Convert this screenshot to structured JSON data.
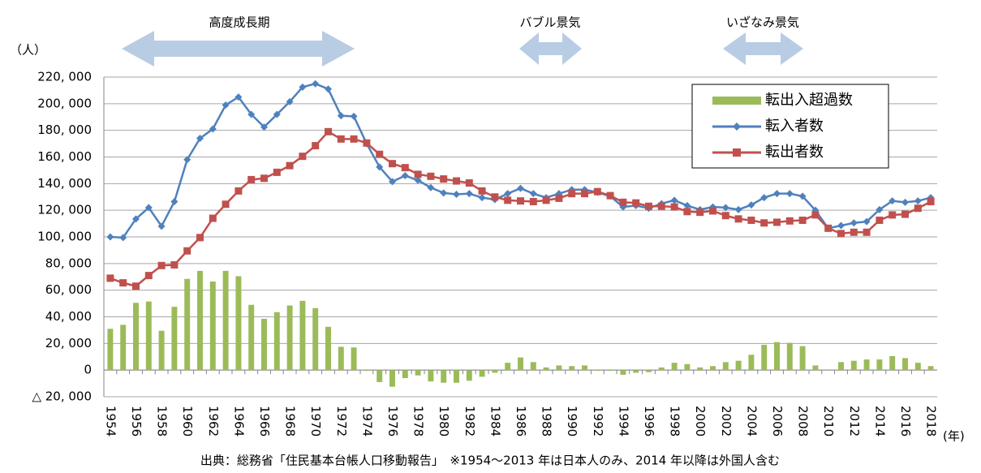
{
  "chart_data": {
    "type": "bar-line",
    "y_label": "（人）",
    "x_label": "(年)",
    "source": "出典：総務省「住民基本台帳人口移動報告」　※1954～2013 年は日本人のみ、2014 年以降は外国人含む",
    "annotations": [
      "高度成長期",
      "バブル景気",
      "いざなみ景気"
    ],
    "categories": [
      "1954",
      null,
      "1956",
      null,
      "1958",
      null,
      "1960",
      null,
      "1962",
      null,
      "1964",
      null,
      "1966",
      null,
      "1968",
      null,
      "1970",
      null,
      "1972",
      null,
      "1974",
      null,
      "1976",
      null,
      "1978",
      null,
      "1980",
      null,
      "1982",
      null,
      "1984",
      null,
      "1986",
      null,
      "1988",
      null,
      "1990",
      null,
      "1992",
      null,
      "1994",
      null,
      "1996",
      null,
      "1998",
      null,
      "2000",
      null,
      "2002",
      null,
      "2004",
      null,
      "2006",
      null,
      "2008",
      null,
      "2010",
      null,
      "2012",
      null,
      "2014",
      null,
      "2016",
      null,
      "2018"
    ],
    "series": [
      {
        "name": "転出入超過数",
        "type": "bar",
        "color": "#9bbb59",
        "values": [
          31000,
          34000,
          50500,
          51500,
          29500,
          47500,
          68500,
          74500,
          66500,
          74500,
          70500,
          49000,
          38500,
          43500,
          48500,
          52000,
          46500,
          32500,
          17500,
          17000,
          -500,
          -9000,
          -12500,
          -6000,
          -4000,
          -8500,
          -9500,
          -9500,
          -8000,
          -5000,
          -2000,
          5500,
          9500,
          6000,
          2000,
          3500,
          3000,
          3500,
          -500,
          -500,
          -3500,
          -2000,
          -1500,
          2000,
          5500,
          4500,
          2000,
          3000,
          6000,
          7000,
          11500,
          19000,
          21000,
          20500,
          18000,
          3500,
          500,
          6000,
          7000,
          8000,
          8000,
          10500,
          9000,
          5500,
          3000
        ]
      },
      {
        "name": "転入者数",
        "type": "line",
        "marker": "diamond",
        "color": "#4f81bd",
        "values": [
          100000,
          99500,
          113500,
          122000,
          108000,
          126500,
          158000,
          174000,
          181000,
          199000,
          205000,
          192000,
          182500,
          192000,
          201500,
          212500,
          215000,
          211000,
          191000,
          190500,
          170000,
          152500,
          141500,
          146000,
          142500,
          137000,
          133000,
          132000,
          132500,
          129500,
          128000,
          132500,
          136500,
          132500,
          129500,
          132500,
          135500,
          135500,
          133500,
          130500,
          122500,
          123500,
          121500,
          125000,
          127500,
          123500,
          120500,
          122500,
          122000,
          120500,
          124000,
          129500,
          132500,
          132500,
          130500,
          120000,
          106500,
          108500,
          110500,
          111500,
          120500,
          127000,
          126000,
          127000,
          129500
        ]
      },
      {
        "name": "転出者数",
        "type": "line",
        "marker": "square",
        "color": "#c0504d",
        "values": [
          69000,
          65500,
          63000,
          71000,
          78500,
          79000,
          89500,
          99500,
          114000,
          124500,
          134500,
          143000,
          144000,
          148500,
          153500,
          160500,
          168500,
          179000,
          173500,
          173500,
          170500,
          162000,
          155000,
          152000,
          147000,
          145500,
          143500,
          142000,
          140500,
          134500,
          130000,
          127500,
          127000,
          126500,
          127500,
          129000,
          132500,
          132500,
          134000,
          131000,
          126000,
          125500,
          123000,
          123000,
          122500,
          119000,
          118500,
          119500,
          116000,
          113500,
          112500,
          110500,
          111000,
          112000,
          112500,
          116500,
          106500,
          102500,
          103500,
          103500,
          112500,
          116500,
          117000,
          121500,
          126500
        ]
      }
    ],
    "ylim": [
      -20000,
      220000
    ],
    "yticks": [
      {
        "value": -20000,
        "label": "△ 20, 000"
      },
      0,
      {
        "value": 20000,
        "label": "20, 000"
      },
      {
        "value": 40000,
        "label": "40, 000"
      },
      {
        "value": 60000,
        "label": "60, 000"
      },
      {
        "value": 80000,
        "label": "80, 000"
      },
      {
        "value": 100000,
        "label": "100, 000"
      },
      {
        "value": 120000,
        "label": "120, 000"
      },
      {
        "value": 140000,
        "label": "140, 000"
      },
      {
        "value": 160000,
        "label": "160, 000"
      },
      {
        "value": 180000,
        "label": "180, 000"
      },
      {
        "value": 200000,
        "label": "200, 000"
      },
      {
        "value": 220000,
        "label": "220, 000"
      }
    ],
    "grid": true,
    "legend_position": "upper right"
  }
}
